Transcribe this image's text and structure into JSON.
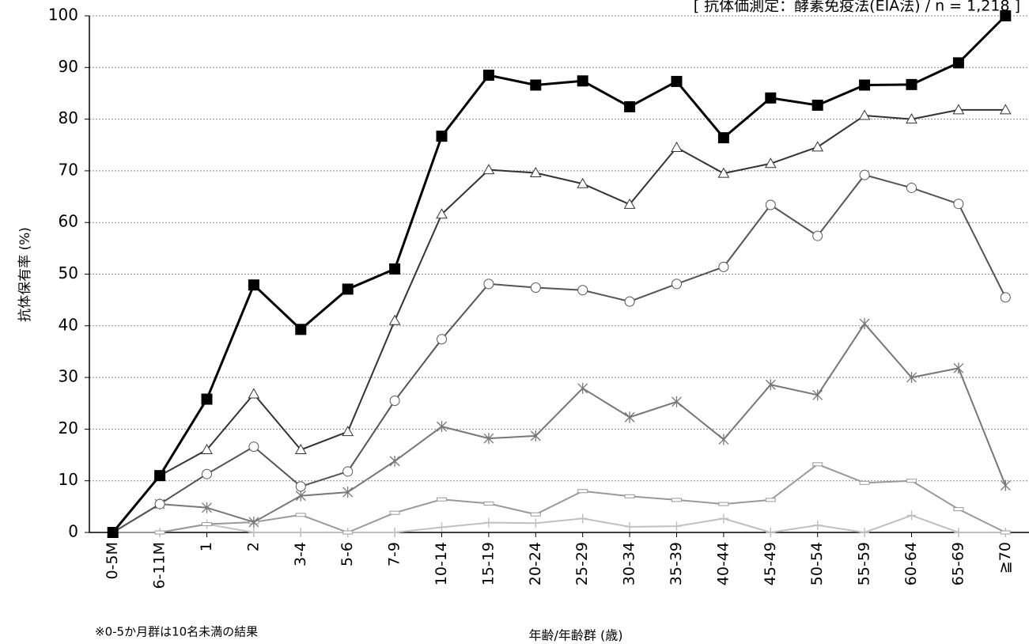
{
  "chart_data": {
    "type": "line",
    "title": "",
    "method_label": "[ 抗体価測定：酵素免疫法(EIA法) / n = 1,218 ]",
    "xlabel": "年齢/年齢群 (歳)",
    "ylabel": "抗体保有率 (%)",
    "footnote": "※0-5か月群は10名未満の結果",
    "ylim": [
      0,
      100
    ],
    "yticks": [
      0,
      10,
      20,
      30,
      40,
      50,
      60,
      70,
      80,
      90,
      100
    ],
    "grid": true,
    "categories": [
      "0-5M",
      "6-11M",
      "1",
      "2",
      "3-4",
      "5-6",
      "7-9",
      "10-14",
      "15-19",
      "20-24",
      "25-29",
      "30-34",
      "35-39",
      "40-44",
      "45-49",
      "50-54",
      "55-59",
      "60-64",
      "65-69",
      "≧70"
    ],
    "series": [
      {
        "color": "#000000",
        "marker": "filled-square",
        "values": [
          0,
          11,
          25.8,
          47.9,
          39.3,
          47.1,
          51,
          76.7,
          88.5,
          86.6,
          87.4,
          82.4,
          87.3,
          76.4,
          84.1,
          82.7,
          86.6,
          86.7,
          90.9,
          100
        ]
      },
      {
        "color": "#333333",
        "marker": "triangle",
        "values": [
          0,
          11,
          16,
          26.8,
          16,
          19.5,
          41,
          61.6,
          70.2,
          69.6,
          67.5,
          63.5,
          74.5,
          69.5,
          71.4,
          74.6,
          80.7,
          80,
          81.8,
          81.8
        ]
      },
      {
        "color": "#555555",
        "marker": "circle",
        "values": [
          0,
          5.5,
          11.3,
          16.6,
          8.9,
          11.8,
          25.5,
          37.4,
          48.1,
          47.4,
          46.9,
          44.7,
          48.1,
          51.4,
          63.4,
          57.4,
          69.2,
          66.7,
          63.6,
          45.5
        ]
      },
      {
        "color": "#777777",
        "marker": "asterisk",
        "values": [
          0,
          5.5,
          4.8,
          2,
          7.1,
          7.8,
          13.8,
          20.5,
          18.2,
          18.7,
          27.9,
          22.3,
          25.3,
          18,
          28.6,
          26.6,
          40.4,
          30,
          31.8,
          9.1
        ]
      },
      {
        "color": "#999999",
        "marker": "dash",
        "values": [
          0,
          0,
          1.6,
          2,
          3.4,
          0,
          3.8,
          6.4,
          5.6,
          3.5,
          8,
          7,
          6.3,
          5.5,
          6.3,
          13.2,
          9.6,
          10,
          4.5,
          0
        ]
      },
      {
        "color": "#c0c0c0",
        "marker": "plus",
        "values": [
          0,
          0,
          1.6,
          0,
          0,
          0,
          0,
          1,
          1.9,
          1.8,
          2.7,
          1.1,
          1.2,
          2.7,
          0,
          1.4,
          0,
          3.3,
          0,
          0
        ]
      }
    ]
  }
}
